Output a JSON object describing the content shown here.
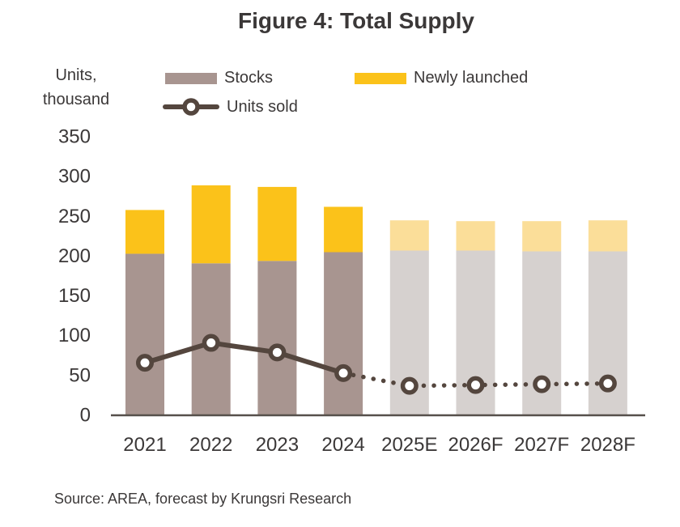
{
  "title": "Figure 4: Total Supply",
  "y_axis_unit": {
    "line1": "Units,",
    "line2": "thousand"
  },
  "legend": {
    "stocks": "Stocks",
    "newly_launched": "Newly launched",
    "units_sold": "Units sold"
  },
  "source": "Source: AREA, forecast by Krungsri Research",
  "colors": {
    "text": "#3B3838",
    "axis": "#56504B"
  },
  "chart_data": {
    "type": "bar",
    "subtype": "stacked-bars-with-line-overlay",
    "title": "Figure 4: Total Supply",
    "ylabel": "Units, thousand",
    "xlabel": "",
    "ylim": [
      0,
      350
    ],
    "yticks": [
      0,
      50,
      100,
      150,
      200,
      250,
      300,
      350
    ],
    "grid": false,
    "legend_position": "top",
    "categories": [
      "2021",
      "2022",
      "2023",
      "2024",
      "2025E",
      "2026F",
      "2027F",
      "2028F"
    ],
    "forecast_start_index": 4,
    "series": [
      {
        "name": "Stocks",
        "type": "bar",
        "stack": true,
        "values": [
          202,
          190,
          193,
          204,
          206,
          206,
          205,
          205
        ],
        "color": "#A89590",
        "forecast_color": "#D6D1CF"
      },
      {
        "name": "Newly launched",
        "type": "bar",
        "stack": true,
        "values": [
          55,
          98,
          93,
          57,
          38,
          37,
          38,
          39
        ],
        "color": "#FBC21A",
        "forecast_color": "#FBDE99"
      },
      {
        "name": "Units sold",
        "type": "line",
        "values": [
          65,
          90,
          78,
          52,
          36,
          37,
          38,
          39
        ],
        "color": "#54463E",
        "solid_until_index": 3,
        "dotted_from_index": 3,
        "marker": "open-circle"
      }
    ]
  }
}
